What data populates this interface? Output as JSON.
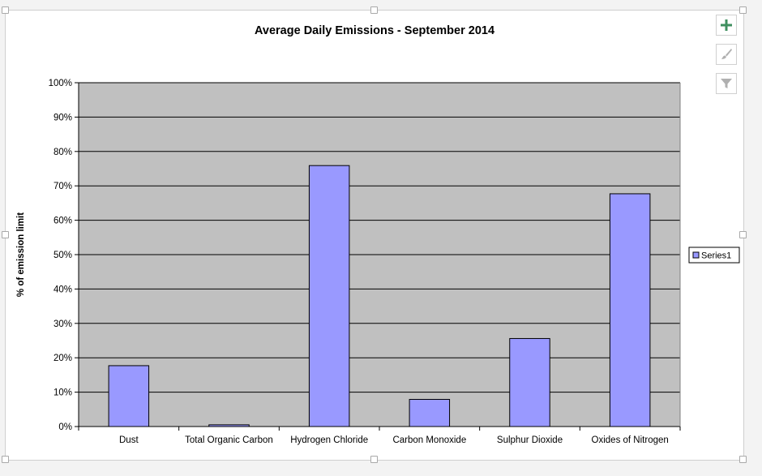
{
  "chart_data": {
    "type": "bar",
    "title": "Average Daily Emissions - September 2014",
    "ylabel": "% of emission limit",
    "xlabel": "",
    "categories": [
      "Dust",
      "Total Organic Carbon",
      "Hydrogen Chloride",
      "Carbon Monoxide",
      "Sulphur Dioxide",
      "Oxides of Nitrogen"
    ],
    "series": [
      {
        "name": "Series1",
        "values": [
          17.7,
          0.5,
          75.9,
          7.9,
          25.6,
          67.7
        ]
      }
    ],
    "ylim": [
      0,
      100
    ],
    "yticks": [
      "0%",
      "10%",
      "20%",
      "30%",
      "40%",
      "50%",
      "60%",
      "70%",
      "80%",
      "90%",
      "100%"
    ],
    "grid": true,
    "legend_position": "right",
    "colors": {
      "bar_fill": "#9999ff",
      "bar_stroke": "#000000",
      "plot_bg": "#c0c0c0",
      "gridline": "#000000"
    }
  },
  "toolbar": {
    "elements_icon": "plus-icon",
    "styles_icon": "brush-icon",
    "filter_icon": "filter-icon"
  }
}
